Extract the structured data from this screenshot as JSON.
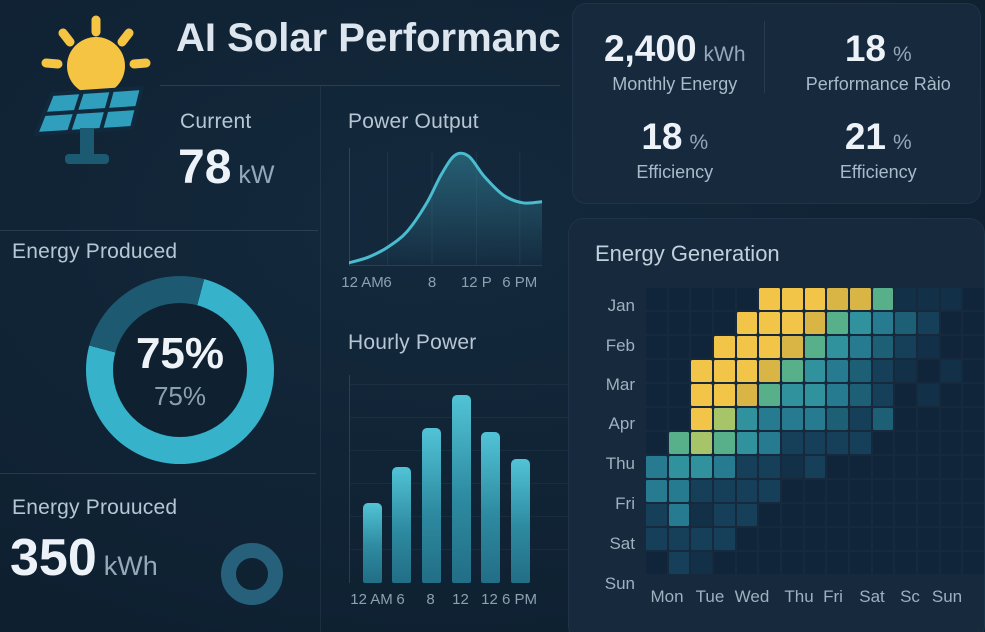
{
  "header": {
    "title": "AI Solar Performanc"
  },
  "colors": {
    "accent_teal": "#36b2ca",
    "dark_teal": "#1d5971",
    "sun_yellow": "#f5c443",
    "card_bg": "#16293d",
    "page_bg": "#0e2030"
  },
  "current": {
    "label": "Current",
    "value": "78",
    "unit": "kW"
  },
  "energy_produced": {
    "label": "Energy Produced",
    "percent": "75%",
    "sub_percent": "75%"
  },
  "energy_prouuced": {
    "label": "Energy Prouuced",
    "value": "350",
    "unit": "kWh"
  },
  "stats": [
    {
      "value": "2,400",
      "unit": "kWh",
      "label": "Monthly Energy"
    },
    {
      "value": "18",
      "unit": "%",
      "label": "Performance Ràio"
    },
    {
      "value": "18",
      "unit": "%",
      "label": "Efficiency"
    },
    {
      "value": "21",
      "unit": "%",
      "label": "Efficiency"
    }
  ],
  "chart_data": [
    {
      "type": "area",
      "title": "Power Output",
      "x_ticks": [
        {
          "label": "12 AM",
          "x": 0.07
        },
        {
          "label": "6",
          "x": 0.2
        },
        {
          "label": "8",
          "x": 0.43
        },
        {
          "label": "12 P",
          "x": 0.66
        },
        {
          "label": "6 PM",
          "x": 0.885
        }
      ],
      "points": [
        [
          0,
          0.02
        ],
        [
          0.1,
          0.07
        ],
        [
          0.2,
          0.16
        ],
        [
          0.3,
          0.3
        ],
        [
          0.4,
          0.55
        ],
        [
          0.48,
          0.82
        ],
        [
          0.55,
          0.99
        ],
        [
          0.62,
          0.98
        ],
        [
          0.7,
          0.8
        ],
        [
          0.8,
          0.63
        ],
        [
          0.9,
          0.56
        ],
        [
          1,
          0.57
        ]
      ],
      "ylim": [
        0,
        1
      ],
      "line_color": "#4abccf",
      "fill_top": "rgba(58,150,172,0.50)",
      "fill_bottom": "rgba(58,150,172,0.03)"
    },
    {
      "type": "bar",
      "title": "Hourly Power",
      "categories": [
        "12 AM",
        "6",
        "8",
        "12",
        "12",
        "6 PM"
      ],
      "values": [
        41,
        60,
        80,
        97,
        78,
        64
      ],
      "ylim": [
        0,
        100
      ],
      "bar_color_top": "#52c3d6",
      "bar_color_bottom": "#226e86"
    },
    {
      "type": "donut",
      "title": "Energy Produced",
      "value": 75,
      "label": "75%",
      "sublabel": "75%",
      "color": "#36b2ca",
      "track": "#1d5971",
      "start_angle_deg": 15
    },
    {
      "type": "heatmap",
      "title": "Energy Generation",
      "row_labels": [
        "Jan",
        "Feb",
        "Mar",
        "Apr",
        "Thu",
        "Fri",
        "Sat",
        "Sun"
      ],
      "col_labels": [
        "Mon",
        "Tue",
        "Wed",
        "Thu",
        "Fri",
        "Sat",
        "Sc",
        "Sun"
      ],
      "palette": {
        "Y": "#f2c549",
        "y": "#d8b545",
        "G": "#a8c468",
        "g": "#58b08a",
        "T": "#2f929d",
        "t": "#267b90",
        "B": "#1d5f75",
        "b": "#16405a",
        "D": "#123048",
        "d": "#102539"
      },
      "matrix": [
        "dddddYYYyygDDDd",
        "ddddYYYygTtBbdd",
        "dddYYYygTtBbDdd",
        "ddYYYygTtBbDdDd",
        "ddYYygTTtBbdDdd",
        "ddYGTtttBbBdddd",
        "dgGgTtbbbbddddd",
        "tTTtbbDbddddddd",
        "ttbbbbddddddddd",
        "btDbbdddddddddd",
        "bbbbddddddddddd",
        "dbDdddddddddddd"
      ]
    }
  ]
}
